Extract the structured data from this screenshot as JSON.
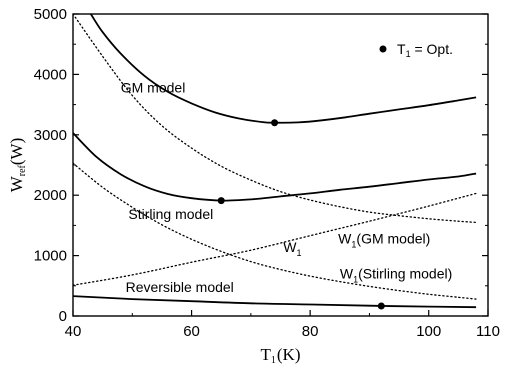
{
  "chart_data": {
    "type": "line",
    "xlabel": {
      "main": "T",
      "sub": "1",
      "unit": "(K)"
    },
    "ylabel": {
      "main": "W",
      "sub": "ref",
      "unit": "(W)"
    },
    "xlim": [
      40,
      110
    ],
    "ylim": [
      0,
      5000
    ],
    "x_ticks": [
      "40",
      "60",
      "80",
      "100",
      "110"
    ],
    "y_ticks": [
      "0",
      "1000",
      "2000",
      "3000",
      "4000",
      "5000"
    ],
    "grid": false,
    "legend": {
      "placement": "top-right",
      "symbol": "filled-circle",
      "label_main": "T",
      "label_sub": "1",
      "label_rest": " = Opt."
    },
    "series": [
      {
        "name": "GM model",
        "style": "solid",
        "x": [
          43,
          45,
          48,
          52,
          56,
          60,
          64,
          68,
          72,
          74,
          78,
          82,
          86,
          90,
          95,
          100,
          105,
          108
        ],
        "y": [
          5000,
          4700,
          4350,
          3980,
          3710,
          3520,
          3370,
          3270,
          3210,
          3200,
          3205,
          3240,
          3290,
          3350,
          3420,
          3490,
          3570,
          3620
        ]
      },
      {
        "name": "Stirling model",
        "style": "solid",
        "x": [
          40,
          44,
          48,
          52,
          56,
          60,
          65,
          70,
          75,
          80,
          85,
          90,
          95,
          100,
          105,
          108
        ],
        "y": [
          3030,
          2630,
          2350,
          2150,
          2020,
          1950,
          1910,
          1930,
          1980,
          2030,
          2090,
          2140,
          2200,
          2260,
          2310,
          2360
        ]
      },
      {
        "name": "Reversible model",
        "style": "solid",
        "x": [
          40,
          50,
          60,
          70,
          80,
          90,
          100,
          108
        ],
        "y": [
          330,
          280,
          245,
          210,
          190,
          170,
          155,
          145
        ]
      },
      {
        "name": "W₁(GM model)",
        "style": "dotted",
        "x": [
          40,
          45,
          50,
          55,
          60,
          65,
          70,
          75,
          80,
          85,
          90,
          95,
          100,
          105,
          108
        ],
        "y": [
          5000,
          4300,
          3650,
          3150,
          2780,
          2480,
          2250,
          2060,
          1920,
          1810,
          1720,
          1660,
          1610,
          1570,
          1550
        ]
      },
      {
        "name": "W₁(Stirling model)",
        "style": "dotted",
        "x": [
          40,
          45,
          50,
          55,
          60,
          65,
          70,
          75,
          80,
          85,
          90,
          95,
          100,
          105,
          108
        ],
        "y": [
          2530,
          2130,
          1800,
          1510,
          1270,
          1070,
          900,
          770,
          660,
          570,
          490,
          420,
          360,
          310,
          280
        ]
      },
      {
        "name": "W₁",
        "style": "dotted",
        "x": [
          40,
          50,
          60,
          70,
          80,
          90,
          100,
          108
        ],
        "y": [
          510,
          680,
          890,
          1090,
          1330,
          1570,
          1820,
          2030
        ]
      }
    ],
    "optimum_points": [
      {
        "series": "GM model",
        "x": 74,
        "y": 3200
      },
      {
        "series": "Stirling model",
        "x": 65,
        "y": 1910
      },
      {
        "series": "Reversible model",
        "x": 92,
        "y": 165
      }
    ],
    "annotations": [
      {
        "text": "GM model",
        "x": 53.5,
        "y": 3700
      },
      {
        "text": "Stirling model",
        "x": 56.5,
        "y": 1610
      },
      {
        "text": "Reversible model",
        "x": 58,
        "y": 400
      },
      {
        "text": "W₁(GM model)",
        "x": 92.5,
        "y": 1200
      },
      {
        "text": "W₁(Stirling model)",
        "x": 94.5,
        "y": 620
      },
      {
        "text": "W₁",
        "x": 77,
        "y": 1060
      }
    ]
  }
}
